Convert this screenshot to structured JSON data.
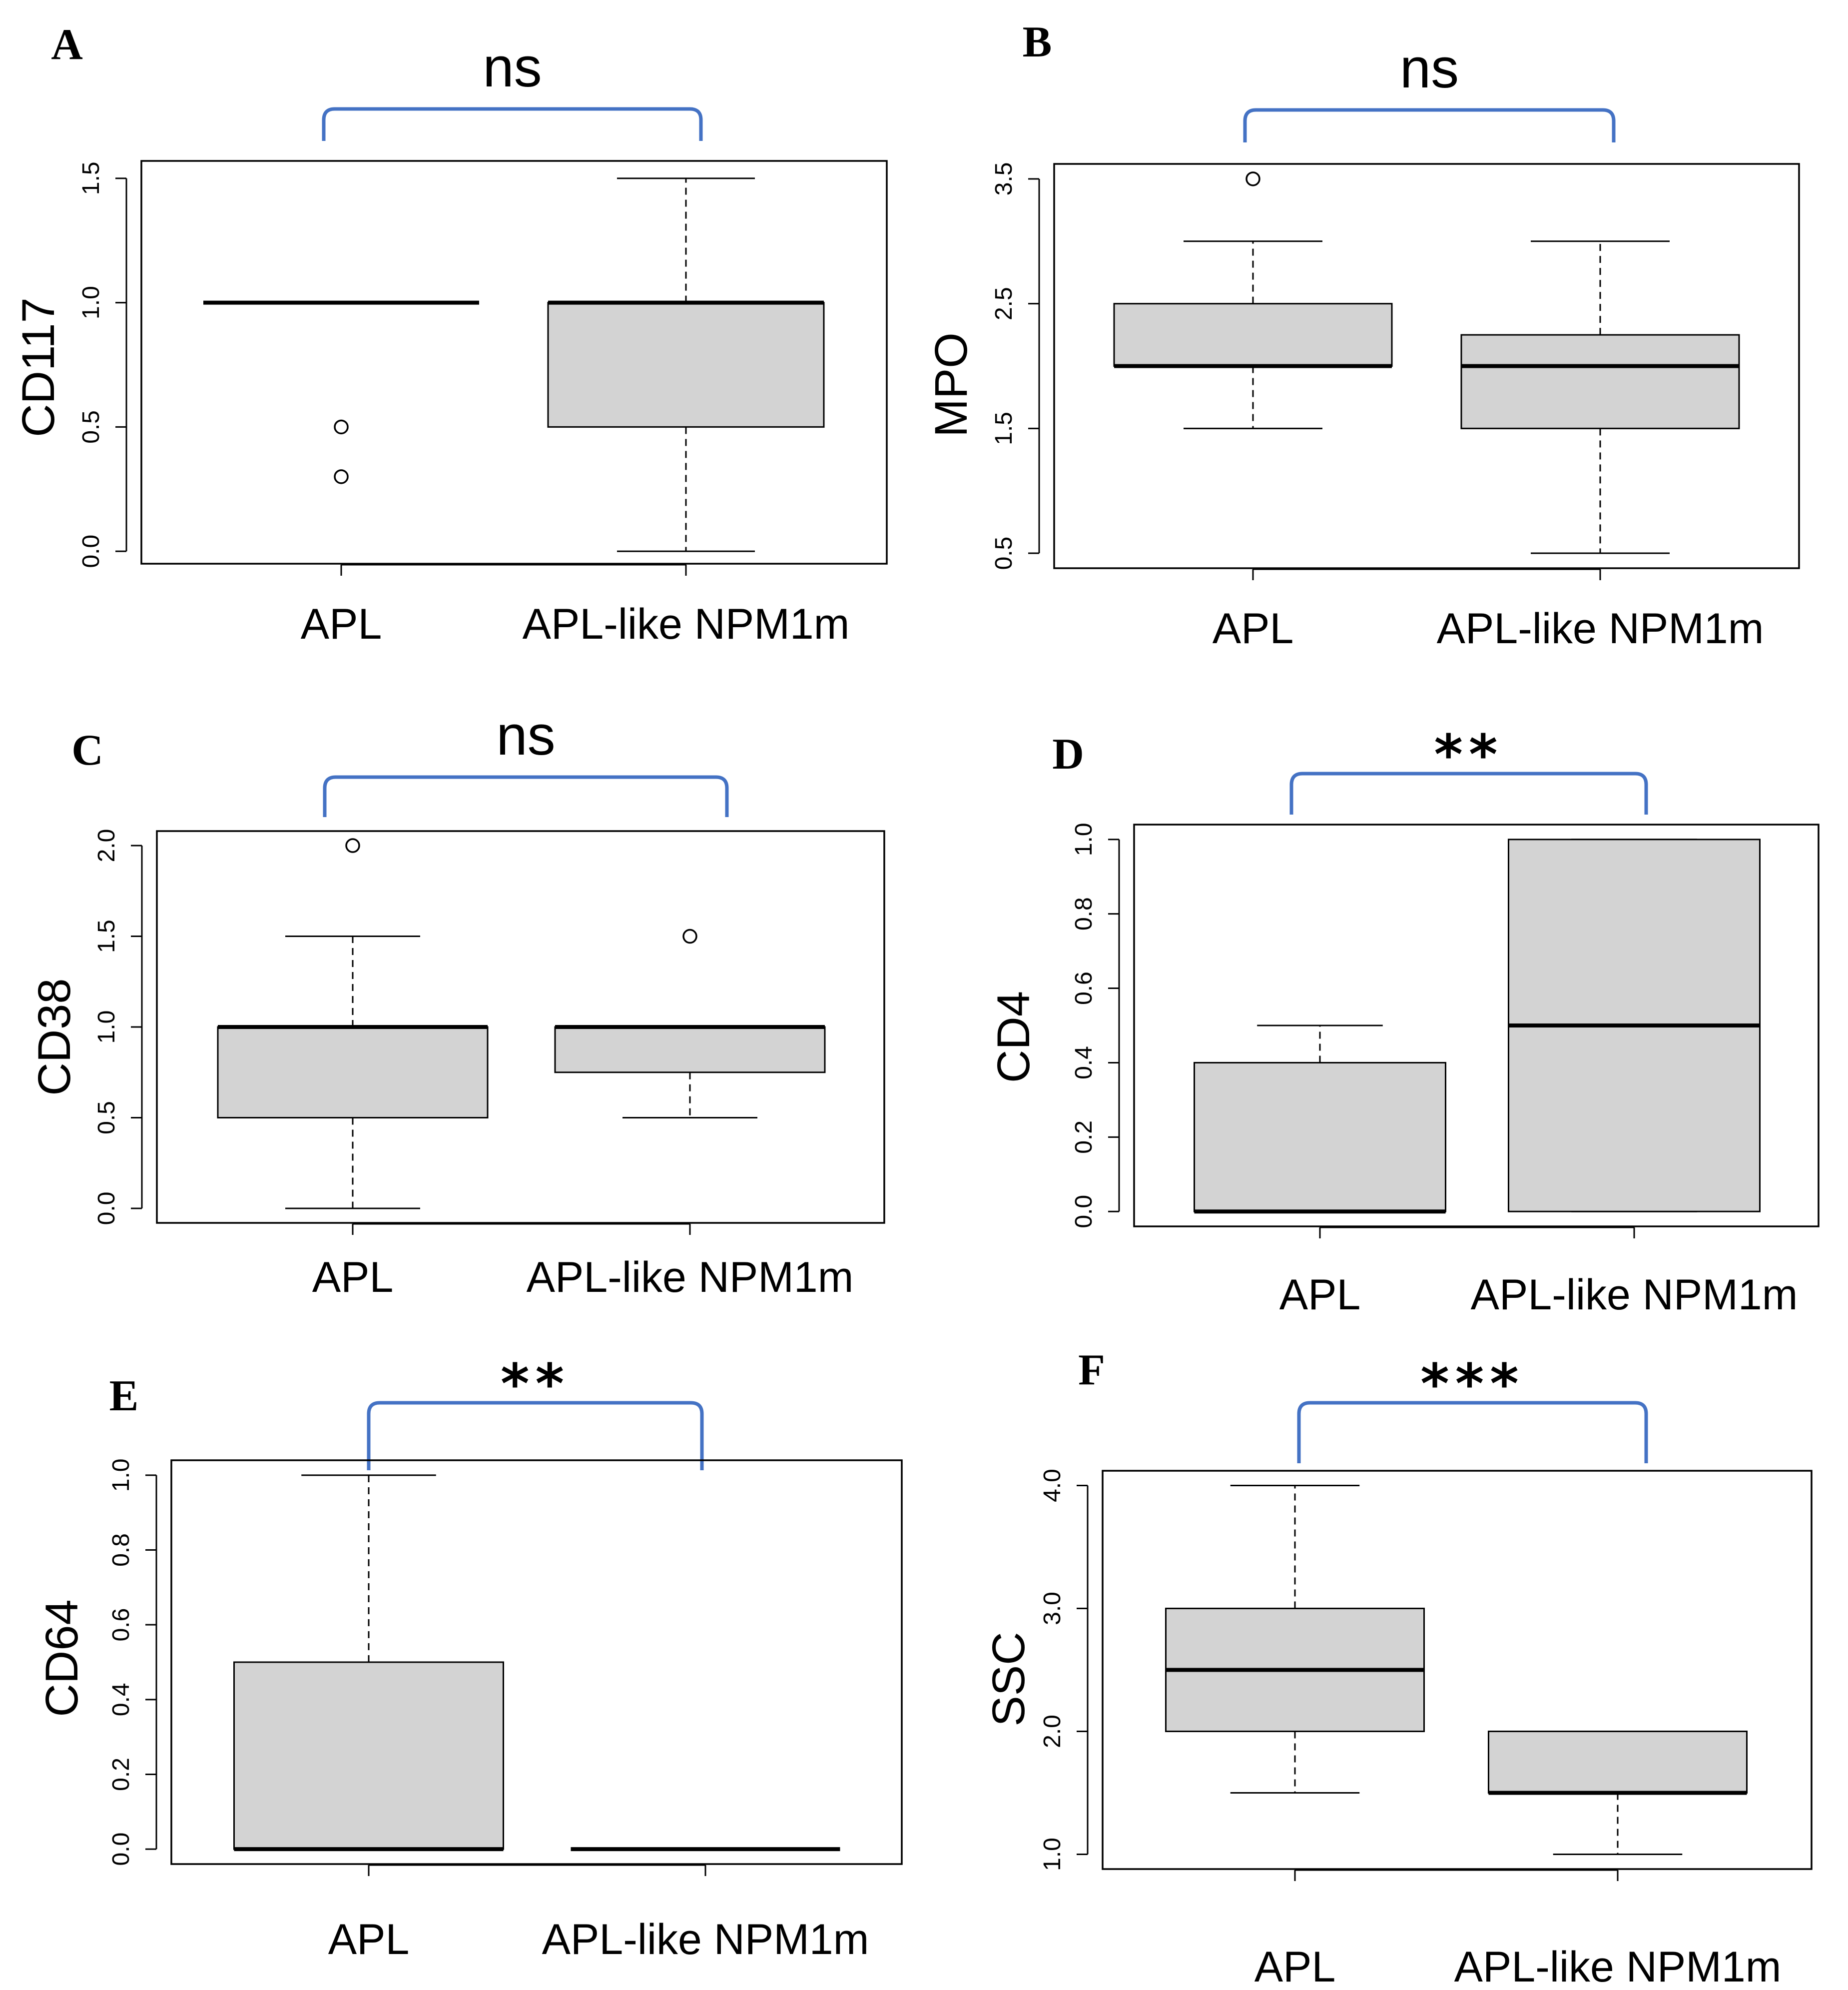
{
  "colors": {
    "box_fill": "#d3d3d3",
    "stroke": "#000000",
    "bracket": "#4472c4",
    "background": "#ffffff"
  },
  "chart_data": [
    {
      "panel": "A",
      "type": "box",
      "ylabel": "CD117",
      "significance": "ns",
      "categories": [
        "APL",
        "APL-like NPM1m"
      ],
      "yticks": [
        0.0,
        0.5,
        1.0,
        1.5
      ],
      "ytick_labels": [
        "0.0",
        "0.5",
        "1.0",
        "1.5"
      ],
      "ylim": [
        -0.05,
        1.57
      ],
      "boxes": [
        {
          "min": 1.0,
          "q1": 1.0,
          "median": 1.0,
          "q3": 1.0,
          "max": 1.0,
          "outliers": [
            0.5,
            0.3
          ]
        },
        {
          "min": 0.0,
          "q1": 0.5,
          "median": 1.0,
          "q3": 1.0,
          "max": 1.5,
          "outliers": []
        }
      ]
    },
    {
      "panel": "B",
      "type": "box",
      "ylabel": "MPO",
      "significance": "ns",
      "categories": [
        "APL",
        "APL-like NPM1m"
      ],
      "yticks": [
        0.5,
        1.5,
        2.5,
        3.5
      ],
      "ytick_labels": [
        "0.5",
        "1.5",
        "2.5",
        "3.5"
      ],
      "ylim": [
        0.38,
        3.62
      ],
      "boxes": [
        {
          "min": 1.5,
          "q1": 2.0,
          "median": 2.0,
          "q3": 2.5,
          "max": 3.0,
          "outliers": [
            3.5
          ]
        },
        {
          "min": 0.5,
          "q1": 1.5,
          "median": 2.0,
          "q3": 2.25,
          "max": 3.0,
          "outliers": []
        }
      ]
    },
    {
      "panel": "C",
      "type": "box",
      "ylabel": "CD38",
      "significance": "ns",
      "categories": [
        "APL",
        "APL-like NPM1m"
      ],
      "yticks": [
        0.0,
        0.5,
        1.0,
        1.5,
        2.0
      ],
      "ytick_labels": [
        "0.0",
        "0.5",
        "1.0",
        "1.5",
        "2.0"
      ],
      "ylim": [
        -0.08,
        2.08
      ],
      "boxes": [
        {
          "min": 0.0,
          "q1": 0.5,
          "median": 1.0,
          "q3": 1.0,
          "max": 1.5,
          "outliers": [
            2.0
          ]
        },
        {
          "min": 0.5,
          "q1": 0.75,
          "median": 1.0,
          "q3": 1.0,
          "max": 1.0,
          "outliers": [
            1.5
          ]
        }
      ]
    },
    {
      "panel": "D",
      "type": "box",
      "ylabel": "CD4",
      "significance": "**",
      "categories": [
        "APL",
        "APL-like NPM1m"
      ],
      "yticks": [
        0.0,
        0.2,
        0.4,
        0.6,
        0.8,
        1.0
      ],
      "ytick_labels": [
        "0.0",
        "0.2",
        "0.4",
        "0.6",
        "0.8",
        "1.0"
      ],
      "ylim": [
        -0.04,
        1.04
      ],
      "boxes": [
        {
          "min": 0.0,
          "q1": 0.0,
          "median": 0.0,
          "q3": 0.4,
          "max": 0.5,
          "outliers": []
        },
        {
          "min": 0.0,
          "q1": 0.0,
          "median": 0.5,
          "q3": 1.0,
          "max": 1.0,
          "outliers": []
        }
      ]
    },
    {
      "panel": "E",
      "type": "box",
      "ylabel": "CD64",
      "significance": "**",
      "categories": [
        "APL",
        "APL-like NPM1m"
      ],
      "yticks": [
        0.0,
        0.2,
        0.4,
        0.6,
        0.8,
        1.0
      ],
      "ytick_labels": [
        "0.0",
        "0.2",
        "0.4",
        "0.6",
        "0.8",
        "1.0"
      ],
      "ylim": [
        -0.04,
        1.04
      ],
      "boxes": [
        {
          "min": 0.0,
          "q1": 0.0,
          "median": 0.0,
          "q3": 0.5,
          "max": 1.0,
          "outliers": []
        },
        {
          "min": 0.0,
          "q1": 0.0,
          "median": 0.0,
          "q3": 0.0,
          "max": 0.0,
          "outliers": []
        }
      ]
    },
    {
      "panel": "F",
      "type": "box",
      "ylabel": "SSC",
      "significance": "***",
      "categories": [
        "APL",
        "APL-like NPM1m"
      ],
      "yticks": [
        1.0,
        2.0,
        3.0,
        4.0
      ],
      "ytick_labels": [
        "1.0",
        "2.0",
        "3.0",
        "4.0"
      ],
      "ylim": [
        0.88,
        4.12
      ],
      "boxes": [
        {
          "min": 1.5,
          "q1": 2.0,
          "median": 2.5,
          "q3": 3.0,
          "max": 4.0,
          "outliers": []
        },
        {
          "min": 1.0,
          "q1": 1.5,
          "median": 1.5,
          "q3": 2.0,
          "max": 2.0,
          "outliers": []
        }
      ]
    }
  ]
}
